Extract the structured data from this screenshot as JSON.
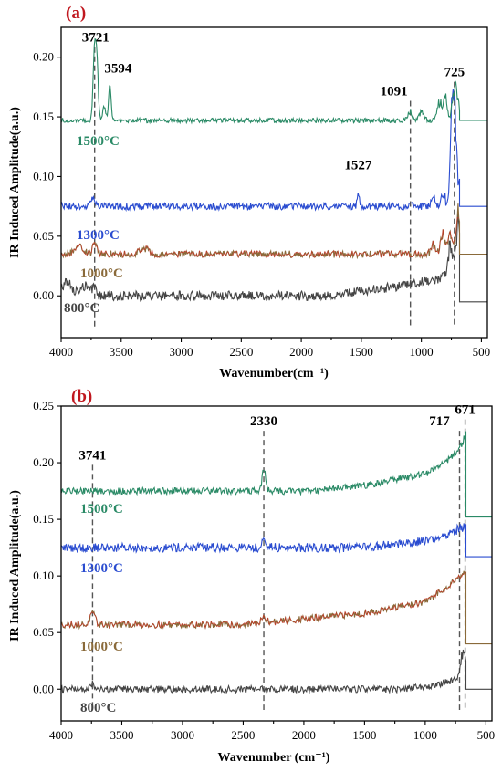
{
  "chart_data": [
    {
      "panel_label": "(a)",
      "type": "line",
      "xlabel": "Wavenumber(cm⁻¹)",
      "ylabel": "IR Induced Amplitude(a.u.)",
      "xlim": [
        4000,
        450
      ],
      "x_reversed": true,
      "ylim": [
        -0.035,
        0.225
      ],
      "xticks": [
        4000,
        3500,
        3000,
        2500,
        2000,
        1500,
        1000,
        500
      ],
      "yticks": [
        0.0,
        0.05,
        0.1,
        0.15,
        0.2
      ],
      "ytick_labels": [
        "0.00",
        "0.05",
        "0.10",
        "0.15",
        "0.20"
      ],
      "grid": false,
      "series": [
        {
          "name": "800°C",
          "label": "800°C",
          "color": "#444444",
          "color2": "#444444",
          "baseline": 0.0,
          "end_level": -0.005,
          "noise": 0.004,
          "features": [
            [
              3950,
              0.012,
              40
            ],
            [
              3800,
              0.008,
              40
            ],
            [
              3721,
              0.006,
              15
            ]
          ],
          "ramp": [
            [
              1800,
              0.0
            ],
            [
              1200,
              0.008
            ],
            [
              900,
              0.013
            ],
            [
              720,
              0.02
            ]
          ],
          "tail": [
            [
              760,
              0.025
            ],
            [
              700,
              0.03
            ],
            [
              680,
              0.03
            ]
          ]
        },
        {
          "name": "1000°C",
          "label": "1000°C",
          "color": "#8a6a3a",
          "color2": "#e01818",
          "baseline": 0.035,
          "end_level": 0.035,
          "noise": 0.003,
          "features": [
            [
              3721,
              0.01,
              15
            ],
            [
              3850,
              0.006,
              40
            ],
            [
              3300,
              0.004,
              40
            ]
          ],
          "ramp": [],
          "tail": [
            [
              900,
              0.01
            ],
            [
              820,
              0.02
            ],
            [
              760,
              0.02
            ],
            [
              700,
              0.025
            ],
            [
              680,
              0.018
            ]
          ]
        },
        {
          "name": "1300°C",
          "label": "1300°C",
          "color": "#2a4cd0",
          "color2": "#2a4cd0",
          "baseline": 0.075,
          "end_level": 0.075,
          "noise": 0.003,
          "features": [
            [
              3740,
              0.006,
              20
            ],
            [
              1527,
              0.013,
              8
            ],
            [
              1091,
              0.005,
              10
            ]
          ],
          "ramp": [],
          "tail": [
            [
              900,
              0.01
            ],
            [
              820,
              0.012
            ],
            [
              740,
              0.07
            ],
            [
              725,
              0.062
            ],
            [
              680,
              0.02
            ]
          ]
        },
        {
          "name": "1500°C",
          "label": "1500°C",
          "color": "#2a8a66",
          "color2": "#2a8a66",
          "baseline": 0.147,
          "end_level": 0.147,
          "noise": 0.002,
          "features": [
            [
              3721,
              0.063,
              12
            ],
            [
              3700,
              0.04,
              10
            ],
            [
              3594,
              0.03,
              10
            ],
            [
              3640,
              0.012,
              12
            ]
          ],
          "ramp": [],
          "tail": [
            [
              1091,
              0.008
            ],
            [
              1000,
              0.01
            ],
            [
              850,
              0.018
            ],
            [
              800,
              0.02
            ],
            [
              725,
              0.03
            ],
            [
              700,
              0.015
            ]
          ]
        }
      ],
      "reference_lines": [
        3721,
        1091,
        725
      ],
      "annotations": [
        {
          "text": "3721",
          "x": 3721,
          "y": 0.213
        },
        {
          "text": "3594",
          "x": 3594,
          "y": 0.187
        },
        {
          "text": "1091",
          "x": 1091,
          "y": 0.168
        },
        {
          "text": "725",
          "x": 725,
          "y": 0.184
        },
        {
          "text": "1527",
          "x": 1527,
          "y": 0.106
        }
      ]
    },
    {
      "panel_label": "(b)",
      "type": "line",
      "xlabel": "Wavenumber (cm⁻¹)",
      "ylabel": "IR Induced Amplitude(a.u.)",
      "xlim": [
        4000,
        450
      ],
      "x_reversed": true,
      "ylim": [
        -0.028,
        0.25
      ],
      "xticks": [
        4000,
        3500,
        3000,
        2500,
        2000,
        1500,
        1000,
        500
      ],
      "yticks": [
        0.0,
        0.05,
        0.1,
        0.15,
        0.2,
        0.25
      ],
      "ytick_labels": [
        "0.00",
        "0.05",
        "0.10",
        "0.15",
        "0.20",
        "0.25"
      ],
      "grid": false,
      "series": [
        {
          "name": "800°C",
          "label": "800°C",
          "color": "#444444",
          "color2": "#444444",
          "baseline": 0.0,
          "end_level": 0.0,
          "noise": 0.003,
          "features": [
            [
              3741,
              0.005,
              15
            ]
          ],
          "ramp": [
            [
              1200,
              0.0
            ],
            [
              900,
              0.004
            ],
            [
              700,
              0.01
            ]
          ],
          "tail": [
            [
              700,
              0.02
            ],
            [
              671,
              0.018
            ]
          ]
        },
        {
          "name": "1000°C",
          "label": "1000°C",
          "color": "#8a6a3a",
          "color2": "#e01818",
          "baseline": 0.057,
          "end_level": 0.04,
          "noise": 0.003,
          "features": [
            [
              3741,
              0.01,
              20
            ],
            [
              2330,
              0.004,
              20
            ]
          ],
          "ramp": [
            [
              2500,
              0.0
            ],
            [
              1500,
              0.01
            ],
            [
              1000,
              0.02
            ],
            [
              800,
              0.035
            ],
            [
              700,
              0.045
            ]
          ],
          "tail": []
        },
        {
          "name": "1300°C",
          "label": "1300°C",
          "color": "#2a4cd0",
          "color2": "#2a4cd0",
          "baseline": 0.125,
          "end_level": 0.117,
          "noise": 0.004,
          "features": [
            [
              2330,
              0.012,
              12
            ]
          ],
          "ramp": [
            [
              1500,
              0.0
            ],
            [
              1000,
              0.006
            ],
            [
              800,
              0.012
            ],
            [
              700,
              0.018
            ]
          ],
          "tail": []
        },
        {
          "name": "1500°C",
          "label": "1500°C",
          "color": "#2a8a66",
          "color2": "#2a8a66",
          "baseline": 0.175,
          "end_level": 0.152,
          "noise": 0.003,
          "features": [
            [
              2330,
              0.02,
              14
            ]
          ],
          "ramp": [
            [
              2000,
              0.0
            ],
            [
              1500,
              0.005
            ],
            [
              1000,
              0.015
            ],
            [
              800,
              0.028
            ],
            [
              700,
              0.04
            ],
            [
              671,
              0.05
            ]
          ],
          "tail": []
        }
      ],
      "reference_lines": [
        3741,
        2330,
        717,
        671
      ],
      "annotations": [
        {
          "text": "3741",
          "x": 3741,
          "y": 0.203
        },
        {
          "text": "2330",
          "x": 2330,
          "y": 0.233
        },
        {
          "text": "717",
          "x": 717,
          "y": 0.233
        },
        {
          "text": "671",
          "x": 671,
          "y": 0.243
        }
      ]
    }
  ]
}
